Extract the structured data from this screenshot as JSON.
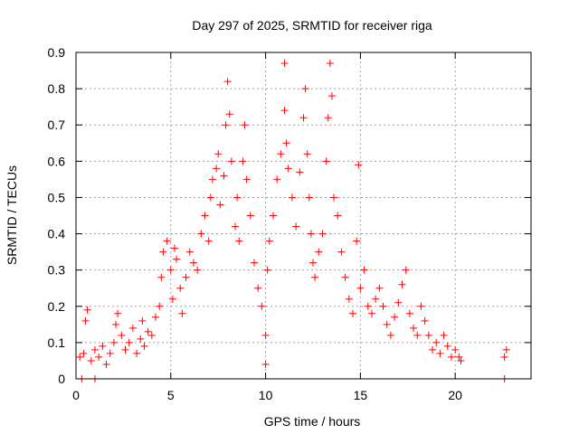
{
  "chart_data": {
    "type": "scatter",
    "title": "Day 297 of 2025, SRMTID for receiver riga",
    "xlabel": "GPS time / hours",
    "ylabel": "SRMTID / TECUs",
    "xlim": [
      0,
      24
    ],
    "ylim": [
      0,
      0.9
    ],
    "x_ticks": [
      0,
      5,
      10,
      15,
      20
    ],
    "x_tick_labels": [
      "0",
      "5",
      "10",
      "15",
      "20"
    ],
    "y_ticks": [
      0,
      0.1,
      0.2,
      0.3,
      0.4,
      0.5,
      0.6,
      0.7,
      0.8,
      0.9
    ],
    "y_tick_labels": [
      "0",
      "0.1",
      "0.2",
      "0.3",
      "0.4",
      "0.5",
      "0.6",
      "0.7",
      "0.8",
      "0.9"
    ],
    "grid": true,
    "marker": "plus",
    "marker_color": "#ff0000",
    "series": [
      {
        "name": "SRMTID",
        "points": [
          [
            0.2,
            0.06
          ],
          [
            0.4,
            0.07
          ],
          [
            0.5,
            0.16
          ],
          [
            0.6,
            0.19
          ],
          [
            0.8,
            0.05
          ],
          [
            1.0,
            0.08
          ],
          [
            1.2,
            0.06
          ],
          [
            1.4,
            0.09
          ],
          [
            1.6,
            0.04
          ],
          [
            1.8,
            0.07
          ],
          [
            2.0,
            0.1
          ],
          [
            2.1,
            0.15
          ],
          [
            2.2,
            0.18
          ],
          [
            2.4,
            0.12
          ],
          [
            2.6,
            0.08
          ],
          [
            2.8,
            0.1
          ],
          [
            3.0,
            0.14
          ],
          [
            3.2,
            0.07
          ],
          [
            3.4,
            0.11
          ],
          [
            3.5,
            0.16
          ],
          [
            3.6,
            0.09
          ],
          [
            3.8,
            0.13
          ],
          [
            4.0,
            0.12
          ],
          [
            4.2,
            0.17
          ],
          [
            4.4,
            0.2
          ],
          [
            4.5,
            0.28
          ],
          [
            4.6,
            0.35
          ],
          [
            4.8,
            0.38
          ],
          [
            5.0,
            0.3
          ],
          [
            5.1,
            0.22
          ],
          [
            5.2,
            0.36
          ],
          [
            5.3,
            0.33
          ],
          [
            5.5,
            0.25
          ],
          [
            5.6,
            0.18
          ],
          [
            5.8,
            0.28
          ],
          [
            6.0,
            0.35
          ],
          [
            6.2,
            0.32
          ],
          [
            6.4,
            0.3
          ],
          [
            6.6,
            0.4
          ],
          [
            6.8,
            0.45
          ],
          [
            7.0,
            0.38
          ],
          [
            7.1,
            0.5
          ],
          [
            7.2,
            0.55
          ],
          [
            7.4,
            0.58
          ],
          [
            7.5,
            0.62
          ],
          [
            7.6,
            0.48
          ],
          [
            7.8,
            0.56
          ],
          [
            7.9,
            0.7
          ],
          [
            8.0,
            0.82
          ],
          [
            8.1,
            0.73
          ],
          [
            8.2,
            0.6
          ],
          [
            8.4,
            0.42
          ],
          [
            8.5,
            0.5
          ],
          [
            8.6,
            0.38
          ],
          [
            8.8,
            0.6
          ],
          [
            8.9,
            0.7
          ],
          [
            9.0,
            0.55
          ],
          [
            9.2,
            0.45
          ],
          [
            9.4,
            0.32
          ],
          [
            9.6,
            0.25
          ],
          [
            9.8,
            0.2
          ],
          [
            10.0,
            0.12
          ],
          [
            10.0,
            0.04
          ],
          [
            10.1,
            0.3
          ],
          [
            10.2,
            0.38
          ],
          [
            10.4,
            0.45
          ],
          [
            10.6,
            0.55
          ],
          [
            10.8,
            0.62
          ],
          [
            11.0,
            0.87
          ],
          [
            11.0,
            0.74
          ],
          [
            11.1,
            0.65
          ],
          [
            11.2,
            0.58
          ],
          [
            11.4,
            0.5
          ],
          [
            11.6,
            0.42
          ],
          [
            11.8,
            0.57
          ],
          [
            12.0,
            0.72
          ],
          [
            12.1,
            0.8
          ],
          [
            12.2,
            0.62
          ],
          [
            12.3,
            0.5
          ],
          [
            12.4,
            0.4
          ],
          [
            12.5,
            0.32
          ],
          [
            12.6,
            0.28
          ],
          [
            12.8,
            0.35
          ],
          [
            13.0,
            0.4
          ],
          [
            13.2,
            0.6
          ],
          [
            13.3,
            0.72
          ],
          [
            13.4,
            0.87
          ],
          [
            13.5,
            0.78
          ],
          [
            13.6,
            0.5
          ],
          [
            13.8,
            0.45
          ],
          [
            14.0,
            0.35
          ],
          [
            14.2,
            0.28
          ],
          [
            14.4,
            0.22
          ],
          [
            14.6,
            0.18
          ],
          [
            14.8,
            0.38
          ],
          [
            14.9,
            0.59
          ],
          [
            15.0,
            0.25
          ],
          [
            15.2,
            0.3
          ],
          [
            15.4,
            0.2
          ],
          [
            15.6,
            0.18
          ],
          [
            15.8,
            0.22
          ],
          [
            16.0,
            0.25
          ],
          [
            16.2,
            0.2
          ],
          [
            16.4,
            0.15
          ],
          [
            16.6,
            0.12
          ],
          [
            16.8,
            0.17
          ],
          [
            17.0,
            0.21
          ],
          [
            17.2,
            0.26
          ],
          [
            17.4,
            0.3
          ],
          [
            17.6,
            0.18
          ],
          [
            17.8,
            0.14
          ],
          [
            18.0,
            0.12
          ],
          [
            18.2,
            0.2
          ],
          [
            18.4,
            0.16
          ],
          [
            18.6,
            0.12
          ],
          [
            18.8,
            0.08
          ],
          [
            19.0,
            0.1
          ],
          [
            19.2,
            0.07
          ],
          [
            19.4,
            0.12
          ],
          [
            19.6,
            0.09
          ],
          [
            19.8,
            0.06
          ],
          [
            20.0,
            0.08
          ],
          [
            20.2,
            0.06
          ],
          [
            20.3,
            0.05
          ],
          [
            22.6,
            0.06
          ],
          [
            22.7,
            0.08
          ],
          [
            0.3,
            0.0
          ],
          [
            1.0,
            0.0
          ],
          [
            22.6,
            0.0
          ]
        ]
      }
    ]
  }
}
